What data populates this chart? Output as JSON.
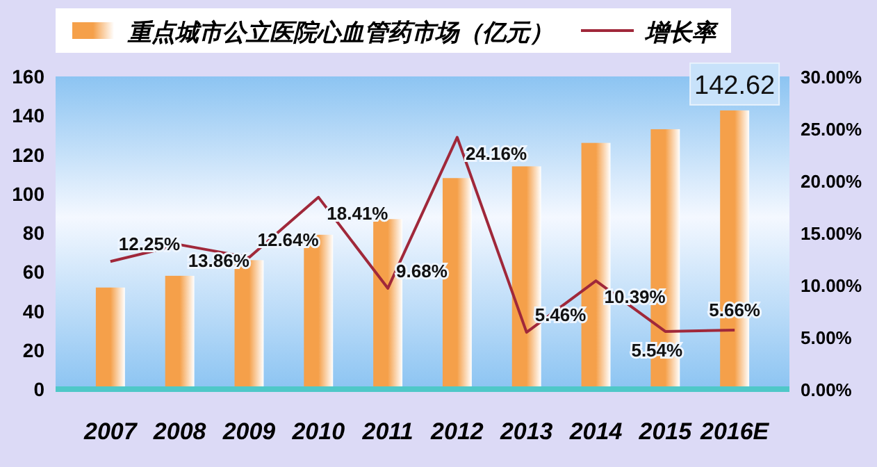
{
  "chart_data": {
    "type": "bar",
    "categories": [
      "2007",
      "2008",
      "2009",
      "2010",
      "2011",
      "2012",
      "2013",
      "2014",
      "2015",
      "2016E"
    ],
    "series": [
      {
        "name": "重点城市公立医院心血管药市场（亿元）",
        "color": "#f5a04a",
        "values": [
          52,
          58,
          66,
          79,
          87,
          108,
          114,
          126,
          133,
          142.62
        ],
        "value_labels": [
          null,
          null,
          null,
          null,
          null,
          null,
          null,
          null,
          null,
          "142.62"
        ]
      },
      {
        "name": "增长率",
        "type": "line",
        "axis": "y2",
        "color": "#a0283a",
        "values": [
          12.25,
          13.86,
          12.64,
          18.41,
          9.68,
          24.16,
          5.46,
          10.39,
          5.54,
          5.66
        ],
        "value_labels": [
          "12.25%",
          "13.86%",
          "12.64%",
          "18.41%",
          "9.68%",
          "24.16%",
          "5.46%",
          "10.39%",
          "5.54%",
          "5.66%"
        ]
      }
    ],
    "ylim": [
      0,
      160
    ],
    "yticks": [
      0,
      20,
      40,
      60,
      80,
      100,
      120,
      140,
      160
    ],
    "y2lim": [
      0,
      30
    ],
    "y2ticks": [
      {
        "value": 0,
        "label": "0.00%"
      },
      {
        "value": 5,
        "label": "5.00%"
      },
      {
        "value": 10,
        "label": "10.00%"
      },
      {
        "value": 15,
        "label": "15.00%"
      },
      {
        "value": 20,
        "label": "20.00%"
      },
      {
        "value": 25,
        "label": "25.00%"
      },
      {
        "value": 30,
        "label": "30.00%"
      }
    ],
    "legend": "top",
    "marker": "none",
    "line_style": "solid",
    "grid": false
  }
}
